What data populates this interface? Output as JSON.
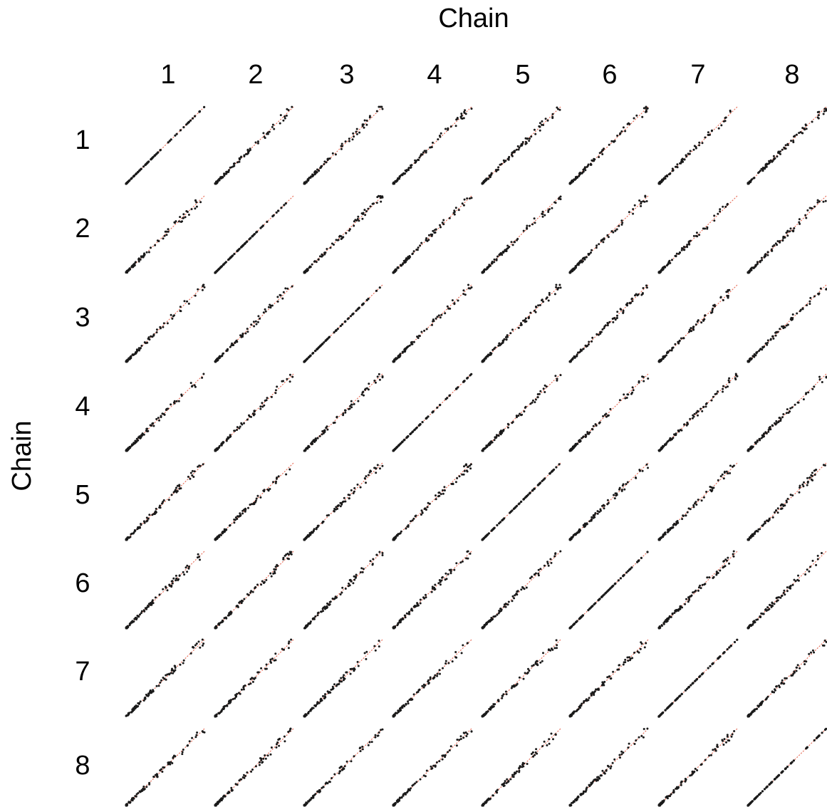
{
  "chart_data": {
    "type": "scatter",
    "title": "",
    "xlabel": "Chain",
    "ylabel": "Chain",
    "column_labels": [
      "1",
      "2",
      "3",
      "4",
      "5",
      "6",
      "7",
      "8"
    ],
    "row_labels": [
      "1",
      "2",
      "3",
      "4",
      "5",
      "6",
      "7",
      "8"
    ],
    "panel_kind": "pairwise scatter of chain samples with y = x reference line",
    "reference_line": "y = x",
    "reference_line_style": "dotted",
    "colors": {
      "points": "#1a1a1a",
      "reference_line": "#e8735f"
    },
    "grid": false,
    "legend": "none",
    "axes_visible": false
  }
}
